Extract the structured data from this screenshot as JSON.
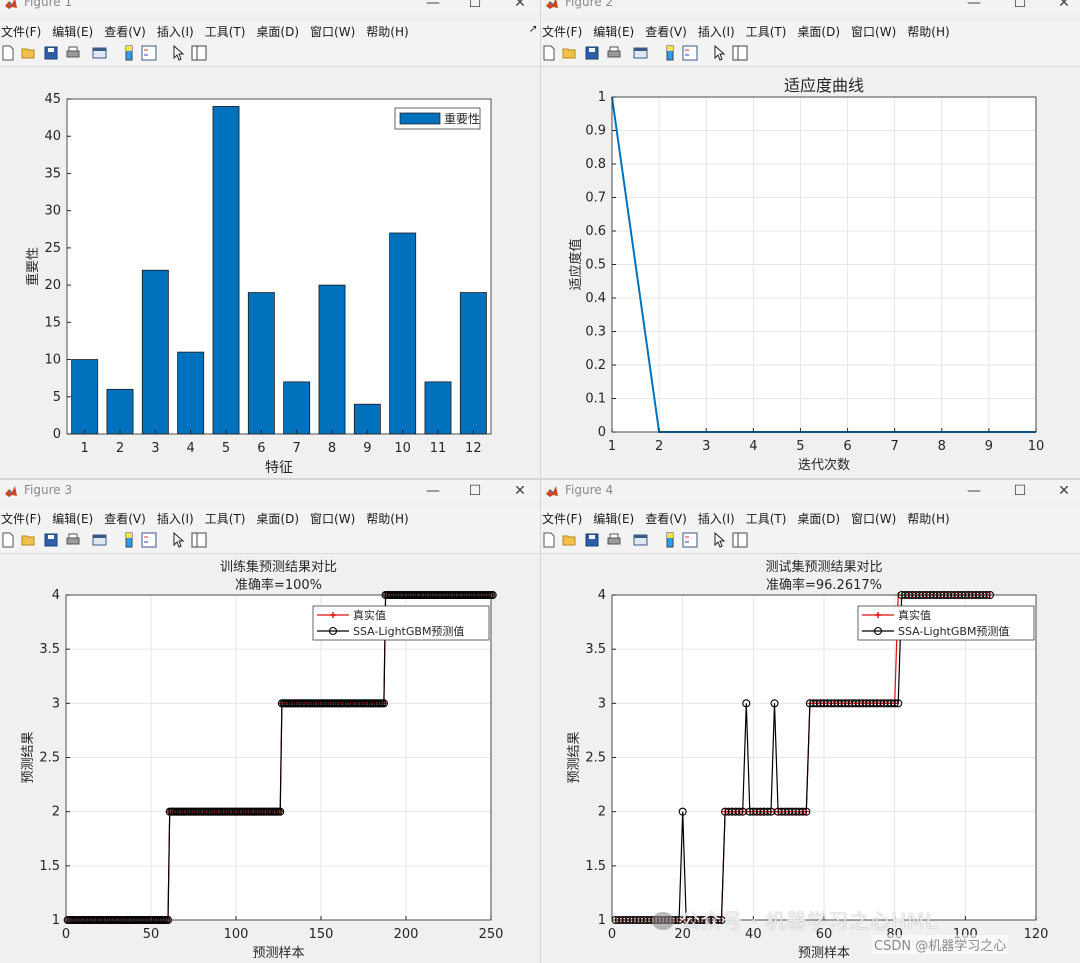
{
  "menu_items": [
    "文件(F)",
    "编辑(E)",
    "查看(V)",
    "插入(I)",
    "工具(T)",
    "桌面(D)",
    "窗口(W)",
    "帮助(H)"
  ],
  "figures": [
    {
      "title": "Figure 1"
    },
    {
      "title": "Figure 2"
    },
    {
      "title": "Figure 3"
    },
    {
      "title": "Figure 4"
    }
  ],
  "toolbar_icons": [
    "new-figure-icon",
    "open-folder-icon",
    "save-icon",
    "print-icon",
    "link-plot-icon",
    "colorbar-icon",
    "legend-icon",
    "pointer-icon",
    "property-inspector-icon"
  ],
  "colors": {
    "bar": "#0072BD",
    "fitness_line": "#0072BD",
    "true_value": "#e01010",
    "predicted": "#000000"
  },
  "chart_data": [
    {
      "type": "bar",
      "title": "",
      "xlabel": "特征",
      "ylabel": "重要性",
      "categories": [
        "1",
        "2",
        "3",
        "4",
        "5",
        "6",
        "7",
        "8",
        "9",
        "10",
        "11",
        "12"
      ],
      "series": [
        {
          "name": "重要性",
          "values": [
            10,
            6,
            22,
            11,
            44,
            19,
            7,
            20,
            4,
            27,
            7,
            19
          ]
        }
      ],
      "ylim": [
        0,
        45
      ],
      "yticks": [
        0,
        5,
        10,
        15,
        20,
        25,
        30,
        35,
        40,
        45
      ],
      "legend": "top-right",
      "grid": false
    },
    {
      "type": "line",
      "title": "适应度曲线",
      "xlabel": "迭代次数",
      "ylabel": "适应度值",
      "x": [
        1,
        2,
        3,
        4,
        5,
        6,
        7,
        8,
        9,
        10
      ],
      "series": [
        {
          "values": [
            1,
            0,
            0,
            0,
            0,
            0,
            0,
            0,
            0,
            0
          ]
        }
      ],
      "xlim": [
        1,
        10
      ],
      "ylim": [
        0,
        1
      ],
      "xticks": [
        1,
        2,
        3,
        4,
        5,
        6,
        7,
        8,
        9,
        10
      ],
      "yticks": [
        0,
        0.1,
        0.2,
        0.3,
        0.4,
        0.5,
        0.6,
        0.7,
        0.8,
        0.9,
        1
      ],
      "grid": true
    },
    {
      "type": "line",
      "title": "训练集预测结果对比",
      "subtitle": "准确率=100%",
      "xlabel": "预测样本",
      "ylabel": "预测结果",
      "n_samples": 251,
      "series": [
        {
          "name": "真实值",
          "segments": [
            {
              "from": 1,
              "to": 60,
              "value": 1
            },
            {
              "from": 61,
              "to": 126,
              "value": 2
            },
            {
              "from": 127,
              "to": 187,
              "value": 3
            },
            {
              "from": 188,
              "to": 251,
              "value": 4
            }
          ]
        },
        {
          "name": "SSA-LightGBM预测值",
          "segments": [
            {
              "from": 1,
              "to": 60,
              "value": 1
            },
            {
              "from": 61,
              "to": 126,
              "value": 2
            },
            {
              "from": 127,
              "to": 187,
              "value": 3
            },
            {
              "from": 188,
              "to": 251,
              "value": 4
            }
          ]
        }
      ],
      "xlim": [
        0,
        250
      ],
      "ylim": [
        1,
        4
      ],
      "xticks": [
        0,
        50,
        100,
        150,
        200,
        250
      ],
      "yticks": [
        1,
        1.5,
        2,
        2.5,
        3,
        3.5,
        4
      ],
      "legend": "top-right",
      "grid": true
    },
    {
      "type": "line",
      "title": "测试集预测结果对比",
      "subtitle": "准确率=96.2617%",
      "xlabel": "预测样本",
      "ylabel": "预测结果",
      "n_samples": 107,
      "series": [
        {
          "name": "真实值",
          "segments": [
            {
              "from": 1,
              "to": 31,
              "value": 1
            },
            {
              "from": 32,
              "to": 55,
              "value": 2
            },
            {
              "from": 56,
              "to": 80,
              "value": 3
            },
            {
              "from": 81,
              "to": 107,
              "value": 4
            }
          ]
        },
        {
          "name": "SSA-LightGBM预测值",
          "segments": [
            {
              "from": 1,
              "to": 31,
              "value": 1
            },
            {
              "from": 32,
              "to": 55,
              "value": 2
            },
            {
              "from": 56,
              "to": 81,
              "value": 3
            },
            {
              "from": 82,
              "to": 107,
              "value": 4
            }
          ],
          "overrides": [
            {
              "x": 20,
              "value": 2
            },
            {
              "x": 38,
              "value": 3
            },
            {
              "x": 46,
              "value": 3
            }
          ]
        }
      ],
      "xlim": [
        0,
        120
      ],
      "ylim": [
        1,
        4
      ],
      "xticks": [
        0,
        20,
        40,
        60,
        80,
        100,
        120
      ],
      "yticks": [
        1,
        1.5,
        2,
        2.5,
        3,
        3.5,
        4
      ],
      "legend": "top-right",
      "grid": true
    }
  ],
  "watermark": "公众号 · 机器学习之心HML",
  "csdn_tag": "CSDN @机器学习之心"
}
